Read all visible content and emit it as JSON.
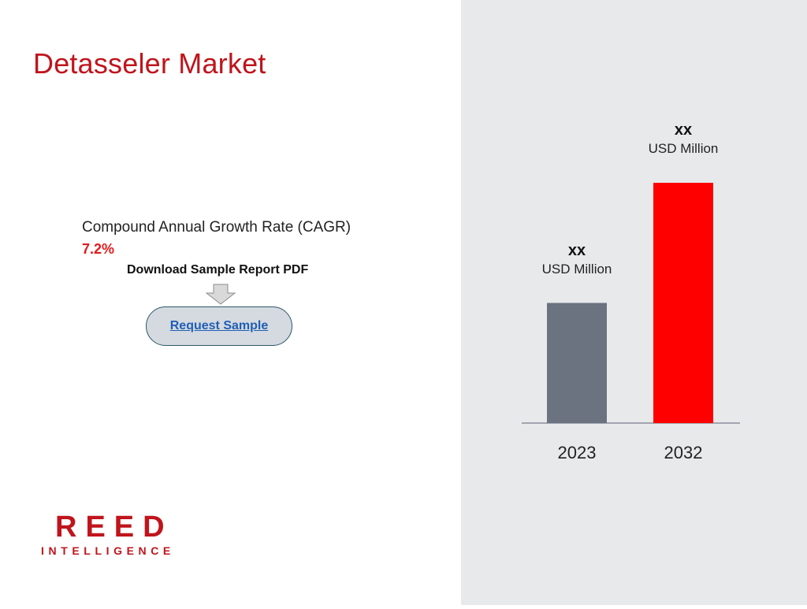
{
  "title": "Detasseler Market",
  "cagr": {
    "label": "Compound Annual Growth Rate (CAGR)",
    "value": "7.2%"
  },
  "download": {
    "label": "Download Sample Report PDF",
    "button_label": "Request Sample"
  },
  "logo": {
    "name": "REED",
    "subtitle": "INTELLIGENCE"
  },
  "colors": {
    "accent": "#c0141c",
    "bar_2023": "#6b7280",
    "bar_2032": "#ff0000",
    "panel_bg": "#e8e9eb"
  },
  "chart_data": {
    "type": "bar",
    "categories": [
      "2023",
      "2032"
    ],
    "values": [
      1,
      2
    ],
    "value_labels": [
      "xx",
      "xx"
    ],
    "unit_label": "USD Million",
    "title": "",
    "xlabel": "",
    "ylabel": "",
    "grid": false,
    "legend": "none"
  }
}
